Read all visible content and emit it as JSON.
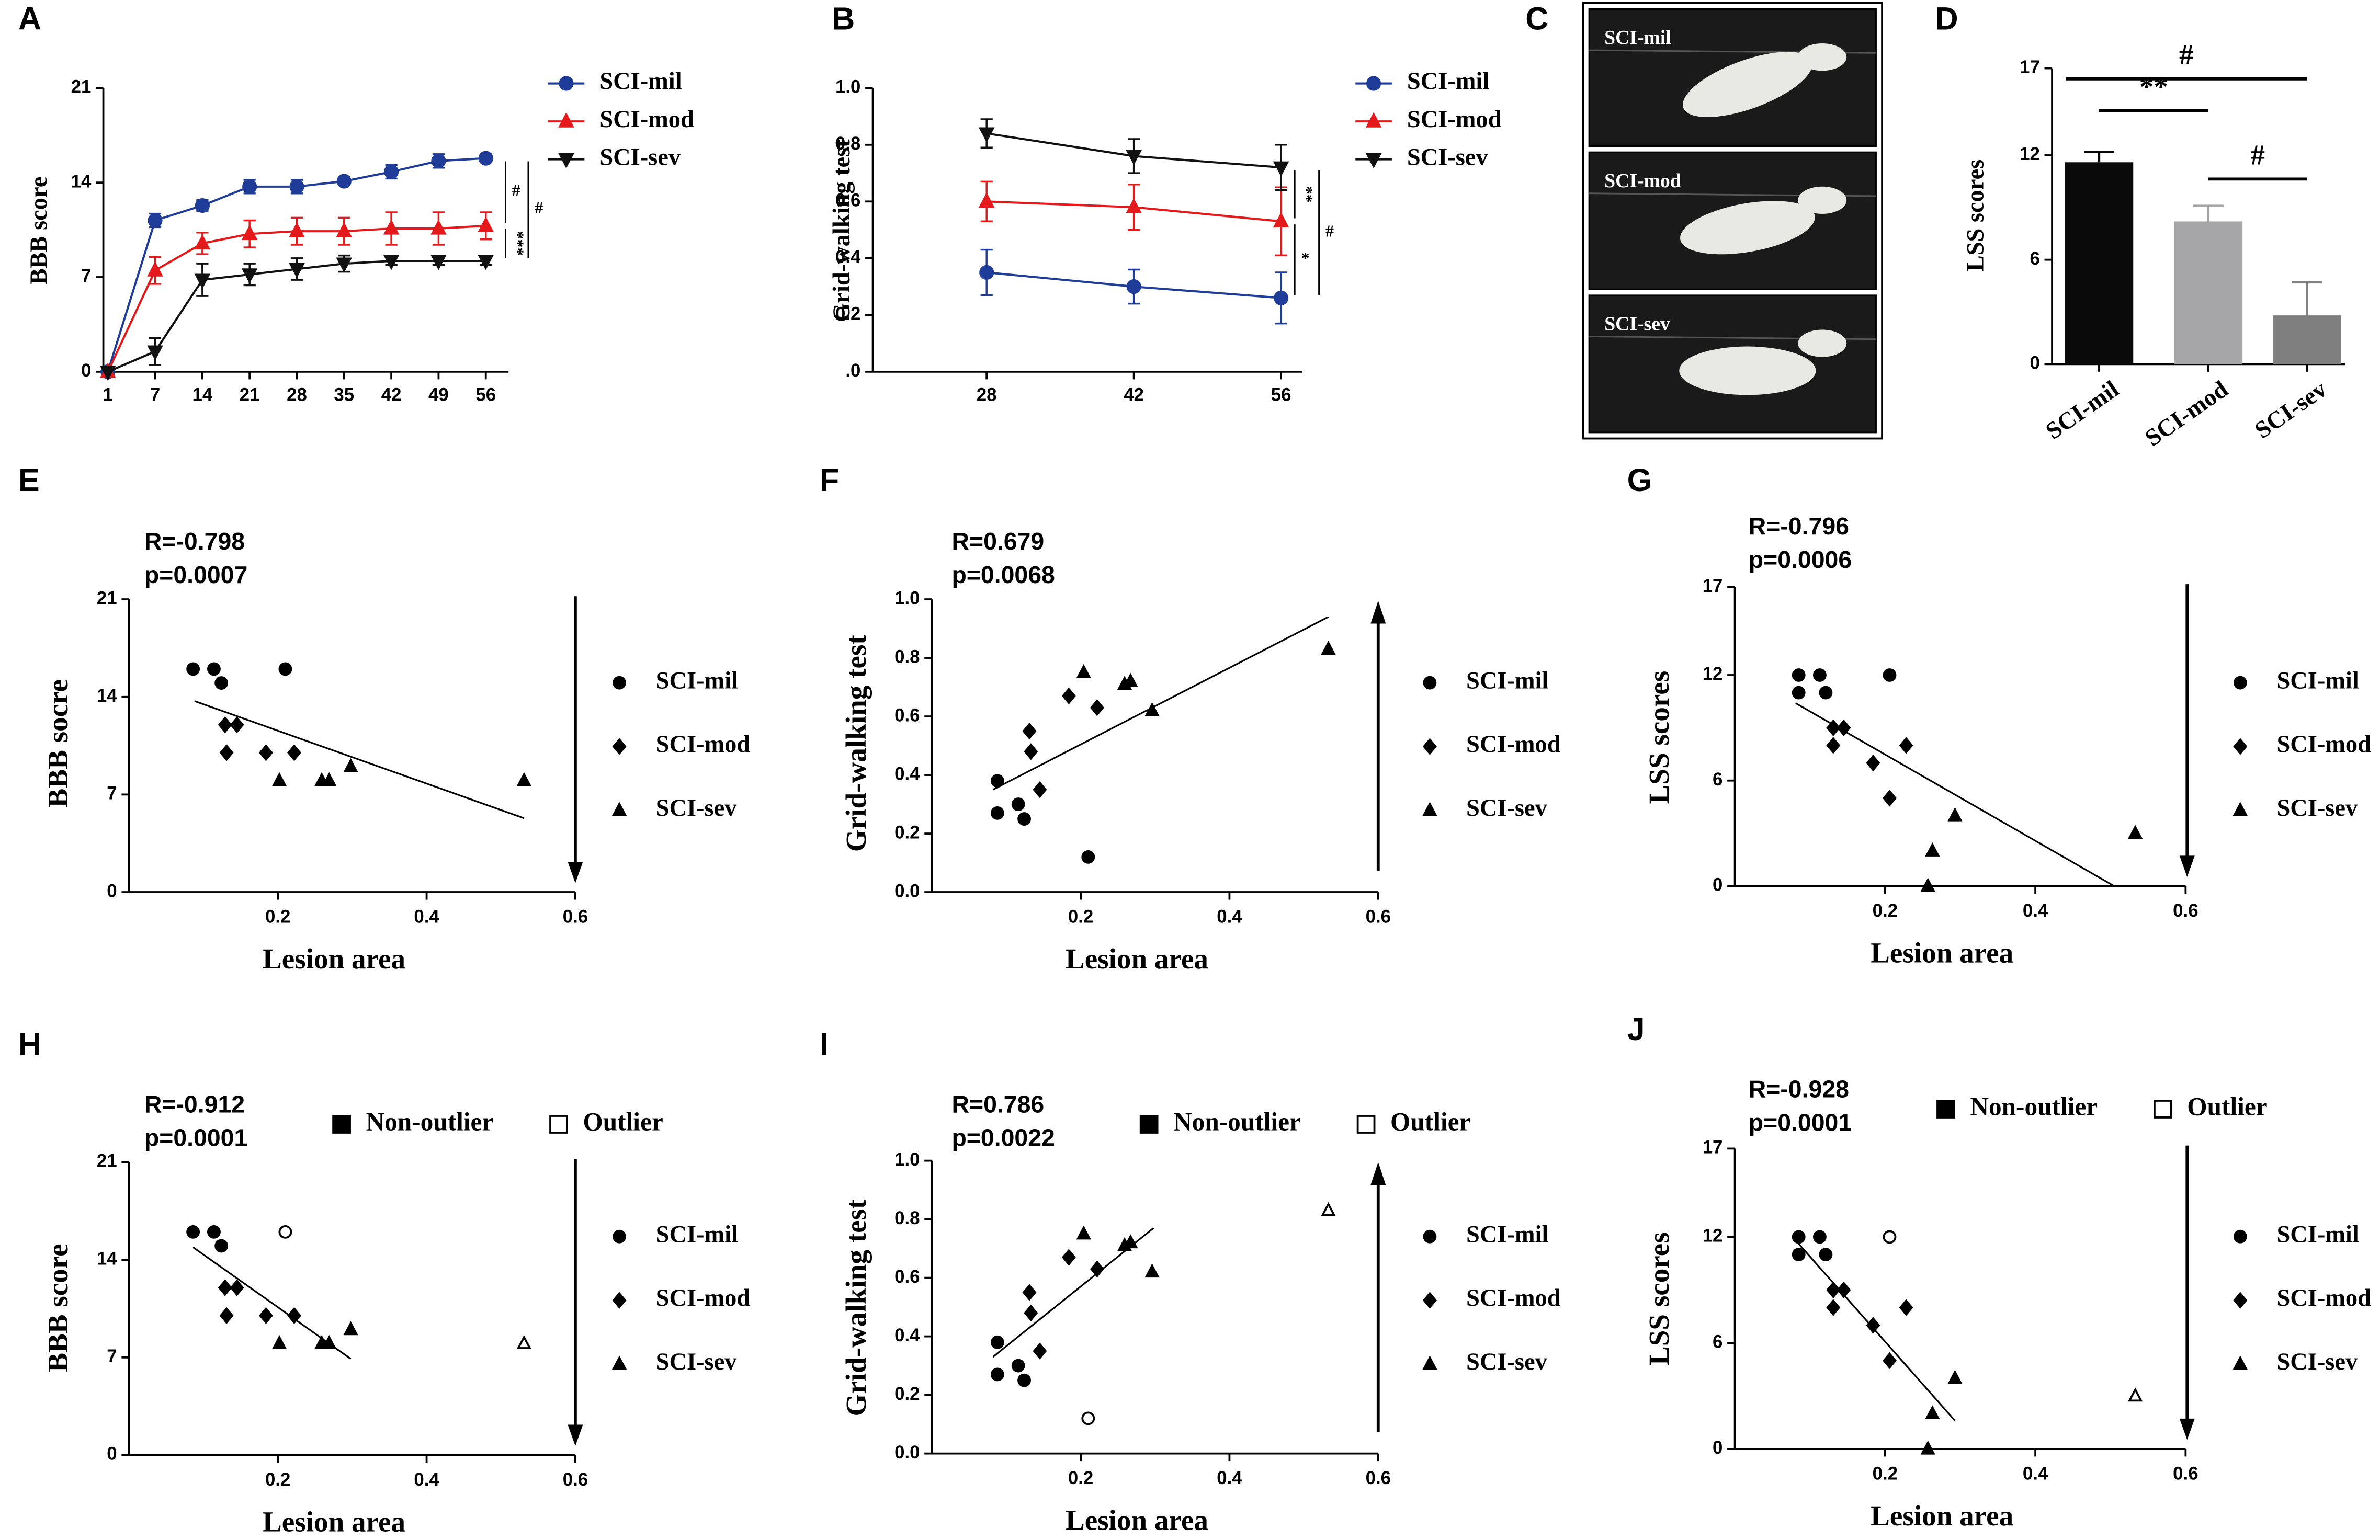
{
  "chart_data": [
    {
      "type": "line",
      "panel": "A",
      "ylabel": "BBB score",
      "categories": [
        "1",
        "7",
        "14",
        "21",
        "28",
        "35",
        "42",
        "49",
        "56"
      ],
      "ylim": [
        0,
        21
      ],
      "yticks": [
        0,
        7,
        14,
        21
      ],
      "series": [
        {
          "name": "SCI-mil",
          "color": "#1f3c98",
          "marker": "circle",
          "values": [
            0,
            11.2,
            12.3,
            13.7,
            13.7,
            14.1,
            14.8,
            15.6,
            15.8
          ],
          "errors": [
            0,
            0.5,
            0.4,
            0.5,
            0.5,
            0.3,
            0.5,
            0.5,
            0.3
          ]
        },
        {
          "name": "SCI-mod",
          "color": "#e3191b",
          "marker": "triangle-up",
          "values": [
            0,
            7.5,
            9.5,
            10.2,
            10.4,
            10.4,
            10.6,
            10.6,
            10.8
          ],
          "errors": [
            0,
            1,
            0.8,
            1,
            1,
            1,
            1.2,
            1.2,
            1
          ]
        },
        {
          "name": "SCI-sev",
          "color": "#111111",
          "marker": "triangle-down",
          "values": [
            0,
            1.5,
            6.8,
            7.2,
            7.6,
            8,
            8.2,
            8.2,
            8.2
          ],
          "errors": [
            0,
            1,
            1.2,
            0.8,
            0.8,
            0.6,
            0.3,
            0.3,
            0.3
          ]
        }
      ],
      "annotations": [
        "#",
        "#",
        "***"
      ]
    },
    {
      "type": "line",
      "panel": "B",
      "ylabel": "Grid-walking test",
      "categories": [
        "28",
        "42",
        "56"
      ],
      "ylim": [
        0,
        1
      ],
      "yticks": [
        {
          "value": 0,
          "label": ".0"
        },
        0.2,
        0.4,
        0.6,
        0.8,
        {
          "value": 1,
          "label": "1.0"
        }
      ],
      "series": [
        {
          "name": "SCI-mil",
          "color": "#1f3c98",
          "marker": "circle",
          "values": [
            0.35,
            0.3,
            0.26
          ],
          "errors": [
            0.08,
            0.06,
            0.09
          ]
        },
        {
          "name": "SCI-mod",
          "color": "#e3191b",
          "marker": "triangle-up",
          "values": [
            0.6,
            0.58,
            0.53
          ],
          "errors": [
            0.07,
            0.08,
            0.12
          ]
        },
        {
          "name": "SCI-sev",
          "color": "#111111",
          "marker": "triangle-down",
          "values": [
            0.84,
            0.76,
            0.72
          ],
          "errors": [
            0.05,
            0.06,
            0.08
          ]
        }
      ],
      "annotations": [
        "**",
        "#",
        "*"
      ]
    },
    {
      "type": "photo",
      "panel": "C",
      "labels": [
        "SCI-mil",
        "SCI-mod",
        "SCI-sev"
      ]
    },
    {
      "type": "bar",
      "panel": "D",
      "ylabel": "LSS scores",
      "categories": [
        "SCI-mil",
        "SCI-mod",
        "SCI-sev"
      ],
      "values": [
        11.6,
        8.2,
        2.8
      ],
      "errors": [
        0.6,
        0.9,
        1.9
      ],
      "colors": [
        "#0a0a0a",
        "#a6a6a8",
        "#7f7f80"
      ],
      "ylim": [
        0,
        17
      ],
      "yticks": [
        0,
        6,
        12,
        17
      ],
      "annotations": [
        "#",
        "**",
        "#"
      ]
    },
    {
      "type": "scatter",
      "panel": "E",
      "ylabel": "BBB socre",
      "xlabel": "Lesion area",
      "stats": [
        "R=-0.798",
        "p=0.0007"
      ],
      "xlim": [
        0,
        0.6
      ],
      "xticks": [
        0.2,
        0.4,
        0.6
      ],
      "ylim": [
        0,
        21
      ],
      "yticks": [
        0,
        7,
        14,
        21
      ],
      "arrow": "down",
      "series": [
        {
          "name": "SCI-mil",
          "marker": "circle",
          "x": [
            0.086,
            0.114,
            0.124,
            0.21
          ],
          "y": [
            16,
            16,
            15,
            16
          ]
        },
        {
          "name": "SCI-mod",
          "marker": "diamond",
          "x": [
            0.129,
            0.145,
            0.131,
            0.184,
            0.222
          ],
          "y": [
            12,
            12,
            10,
            10,
            10
          ]
        },
        {
          "name": "SCI-sev",
          "marker": "triangle-up",
          "x": [
            0.202,
            0.259,
            0.269,
            0.298,
            0.531
          ],
          "y": [
            8,
            8,
            8,
            9,
            8
          ]
        }
      ],
      "fit": {
        "x": [
          0.088,
          0.531
        ],
        "y": [
          13.7,
          5.3
        ]
      }
    },
    {
      "type": "scatter",
      "panel": "F",
      "ylabel": "Grid-walking test",
      "xlabel": "Lesion area",
      "stats": [
        "R=0.679",
        "p=0.0068"
      ],
      "xlim": [
        0,
        0.6
      ],
      "xticks": [
        0.2,
        0.4,
        0.6
      ],
      "ylim": [
        0,
        1
      ],
      "yticks": [
        {
          "value": 0,
          "label": "0.0"
        },
        0.2,
        0.4,
        0.6,
        0.8,
        {
          "value": 1,
          "label": "1.0"
        }
      ],
      "arrow": "up",
      "series": [
        {
          "name": "SCI-mil",
          "marker": "circle",
          "x": [
            0.088,
            0.088,
            0.116,
            0.124,
            0.21
          ],
          "y": [
            0.38,
            0.27,
            0.3,
            0.25,
            0.12
          ]
        },
        {
          "name": "SCI-mod",
          "marker": "diamond",
          "x": [
            0.131,
            0.133,
            0.145,
            0.184,
            0.222
          ],
          "y": [
            0.55,
            0.48,
            0.35,
            0.67,
            0.63
          ]
        },
        {
          "name": "SCI-sev",
          "marker": "triangle-up",
          "x": [
            0.204,
            0.259,
            0.267,
            0.296,
            0.533
          ],
          "y": [
            0.75,
            0.71,
            0.72,
            0.62,
            0.83
          ]
        }
      ],
      "fit": {
        "x": [
          0.082,
          0.533
        ],
        "y": [
          0.35,
          0.94
        ]
      }
    },
    {
      "type": "scatter",
      "panel": "G",
      "ylabel": "LSS scores",
      "xlabel": "Lesion area",
      "stats": [
        "R=-0.796",
        "p=0.0006"
      ],
      "xlim": [
        0,
        0.6
      ],
      "xticks": [
        0.2,
        0.4,
        0.6
      ],
      "ylim": [
        0,
        17
      ],
      "yticks": [
        0,
        6,
        12,
        17
      ],
      "arrow": "down",
      "series": [
        {
          "name": "SCI-mil",
          "marker": "circle",
          "x": [
            0.085,
            0.113,
            0.085,
            0.121,
            0.206
          ],
          "y": [
            12,
            12,
            11,
            11,
            12
          ]
        },
        {
          "name": "SCI-mod",
          "marker": "diamond",
          "x": [
            0.131,
            0.145,
            0.131,
            0.184,
            0.228,
            0.206
          ],
          "y": [
            9,
            9,
            8,
            7,
            8,
            5
          ]
        },
        {
          "name": "SCI-sev",
          "marker": "triangle-up",
          "x": [
            0.257,
            0.263,
            0.293,
            0.533
          ],
          "y": [
            0,
            2,
            4,
            3
          ]
        }
      ],
      "fit": {
        "x": [
          0.081,
          0.505
        ],
        "y": [
          10.4,
          0
        ]
      }
    },
    {
      "type": "scatter",
      "panel": "H",
      "ylabel": "BBB score",
      "xlabel": "Lesion area",
      "stats": [
        "R=-0.912",
        "p=0.0001"
      ],
      "outlier_legend": [
        "Non-outlier",
        "Outlier"
      ],
      "xlim": [
        0,
        0.6
      ],
      "xticks": [
        0.2,
        0.4,
        0.6
      ],
      "ylim": [
        0,
        21
      ],
      "yticks": [
        0,
        7,
        14,
        21
      ],
      "arrow": "down",
      "series": [
        {
          "name": "SCI-mil",
          "marker": "circle",
          "x": [
            0.086,
            0.114,
            0.124,
            0.21
          ],
          "y": [
            16,
            16,
            15,
            16
          ],
          "hollow": [
            false,
            false,
            false,
            true
          ]
        },
        {
          "name": "SCI-mod",
          "marker": "diamond",
          "x": [
            0.129,
            0.145,
            0.131,
            0.184,
            0.222
          ],
          "y": [
            12,
            12,
            10,
            10,
            10
          ],
          "hollow": [
            false,
            false,
            false,
            false,
            false
          ]
        },
        {
          "name": "SCI-sev",
          "marker": "triangle-up",
          "x": [
            0.202,
            0.259,
            0.269,
            0.298,
            0.531
          ],
          "y": [
            8,
            8,
            8,
            9,
            8
          ],
          "hollow": [
            false,
            false,
            false,
            false,
            true
          ]
        }
      ],
      "fit": {
        "x": [
          0.086,
          0.298
        ],
        "y": [
          14.9,
          6.9
        ]
      }
    },
    {
      "type": "scatter",
      "panel": "I",
      "ylabel": "Grid-walking test",
      "xlabel": "Lesion area",
      "stats": [
        "R=0.786",
        "p=0.0022"
      ],
      "outlier_legend": [
        "Non-outlier",
        "Outlier"
      ],
      "xlim": [
        0,
        0.6
      ],
      "xticks": [
        0.2,
        0.4,
        0.6
      ],
      "ylim": [
        0,
        1
      ],
      "yticks": [
        {
          "value": 0,
          "label": "0.0"
        },
        0.2,
        0.4,
        0.6,
        0.8,
        {
          "value": 1,
          "label": "1.0"
        }
      ],
      "arrow": "up",
      "series": [
        {
          "name": "SCI-mil",
          "marker": "circle",
          "x": [
            0.088,
            0.088,
            0.116,
            0.124,
            0.21
          ],
          "y": [
            0.38,
            0.27,
            0.3,
            0.25,
            0.12
          ],
          "hollow": [
            false,
            false,
            false,
            false,
            true
          ]
        },
        {
          "name": "SCI-mod",
          "marker": "diamond",
          "x": [
            0.131,
            0.133,
            0.145,
            0.184,
            0.222
          ],
          "y": [
            0.55,
            0.48,
            0.35,
            0.67,
            0.63
          ],
          "hollow": [
            false,
            false,
            false,
            false,
            false
          ]
        },
        {
          "name": "SCI-sev",
          "marker": "triangle-up",
          "x": [
            0.204,
            0.259,
            0.267,
            0.296,
            0.533
          ],
          "y": [
            0.75,
            0.71,
            0.72,
            0.62,
            0.83
          ],
          "hollow": [
            false,
            false,
            false,
            false,
            true
          ]
        }
      ],
      "fit": {
        "x": [
          0.082,
          0.298
        ],
        "y": [
          0.33,
          0.77
        ]
      }
    },
    {
      "type": "scatter",
      "panel": "J",
      "ylabel": "LSS scores",
      "xlabel": "Lesion area",
      "stats": [
        "R=-0.928",
        "p=0.0001"
      ],
      "outlier_legend": [
        "Non-outlier",
        "Outlier"
      ],
      "xlim": [
        0,
        0.6
      ],
      "xticks": [
        0.2,
        0.4,
        0.6
      ],
      "ylim": [
        0,
        17
      ],
      "yticks": [
        0,
        6,
        12,
        17
      ],
      "arrow": "down",
      "series": [
        {
          "name": "SCI-mil",
          "marker": "circle",
          "x": [
            0.085,
            0.113,
            0.085,
            0.121,
            0.206
          ],
          "y": [
            12,
            12,
            11,
            11,
            12
          ],
          "hollow": [
            false,
            false,
            false,
            false,
            true
          ]
        },
        {
          "name": "SCI-mod",
          "marker": "diamond",
          "x": [
            0.131,
            0.145,
            0.131,
            0.184,
            0.228,
            0.206
          ],
          "y": [
            9,
            9,
            8,
            7,
            8,
            5
          ],
          "hollow": [
            false,
            false,
            false,
            false,
            false,
            false
          ]
        },
        {
          "name": "SCI-sev",
          "marker": "triangle-up",
          "x": [
            0.257,
            0.263,
            0.293,
            0.533
          ],
          "y": [
            0,
            2,
            4,
            3
          ],
          "hollow": [
            false,
            false,
            false,
            true
          ]
        }
      ],
      "fit": {
        "x": [
          0.081,
          0.293
        ],
        "y": [
          11.8,
          1.6
        ]
      }
    }
  ]
}
